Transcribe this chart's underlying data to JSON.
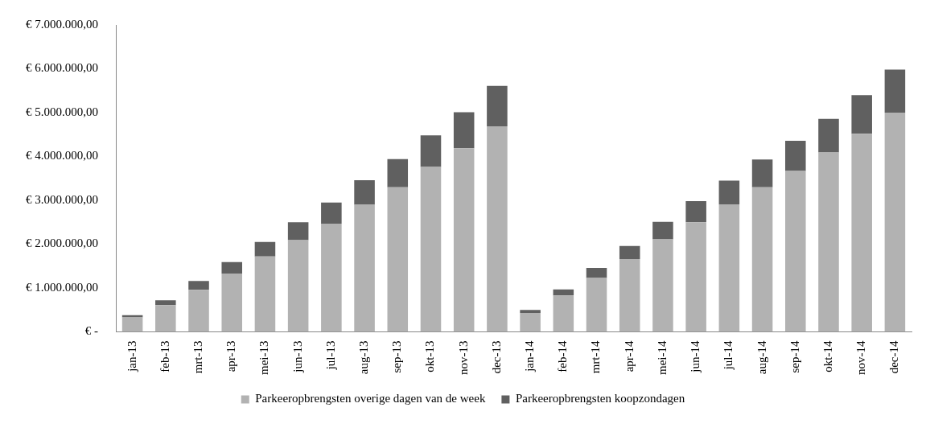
{
  "chart_data": {
    "type": "bar",
    "stacked": true,
    "legend": "bottom",
    "grid": false,
    "categories": [
      "jan-13",
      "feb-13",
      "mrt-13",
      "apr-13",
      "mei-13",
      "jun-13",
      "jul-13",
      "aug-13",
      "sep-13",
      "okt-13",
      "nov-13",
      "dec-13",
      "jan-14",
      "feb-14",
      "mrt-14",
      "apr-14",
      "mei-14",
      "jun-14",
      "jul-14",
      "aug-14",
      "sep-14",
      "okt-14",
      "nov-14",
      "dec-14"
    ],
    "series": [
      {
        "name": "Parkeeropbrengsten overige dagen van de week",
        "color": "#b2b2b2",
        "values": [
          330000,
          610000,
          960000,
          1330000,
          1720000,
          2090000,
          2470000,
          2900000,
          3300000,
          3760000,
          4190000,
          4690000,
          430000,
          830000,
          1230000,
          1660000,
          2110000,
          2500000,
          2910000,
          3300000,
          3670000,
          4090000,
          4520000,
          5000000
        ]
      },
      {
        "name": "Parkeeropbrengsten koopzondagen",
        "color": "#606060",
        "values": [
          50000,
          110000,
          200000,
          260000,
          330000,
          410000,
          480000,
          560000,
          640000,
          720000,
          820000,
          920000,
          70000,
          140000,
          230000,
          300000,
          400000,
          480000,
          540000,
          630000,
          690000,
          770000,
          880000,
          980000
        ]
      }
    ],
    "ylim": [
      0,
      7000000
    ],
    "yticks": [
      {
        "value": 0,
        "label": "€ -"
      },
      {
        "value": 1000000,
        "label": "€ 1.000.000,00"
      },
      {
        "value": 2000000,
        "label": "€ 2.000.000,00"
      },
      {
        "value": 3000000,
        "label": "€ 3.000.000,00"
      },
      {
        "value": 4000000,
        "label": "€ 4.000.000,00"
      },
      {
        "value": 5000000,
        "label": "€ 5.000.000,00"
      },
      {
        "value": 6000000,
        "label": "€ 6.000.000,00"
      },
      {
        "value": 7000000,
        "label": "€ 7.000.000,00"
      }
    ]
  }
}
